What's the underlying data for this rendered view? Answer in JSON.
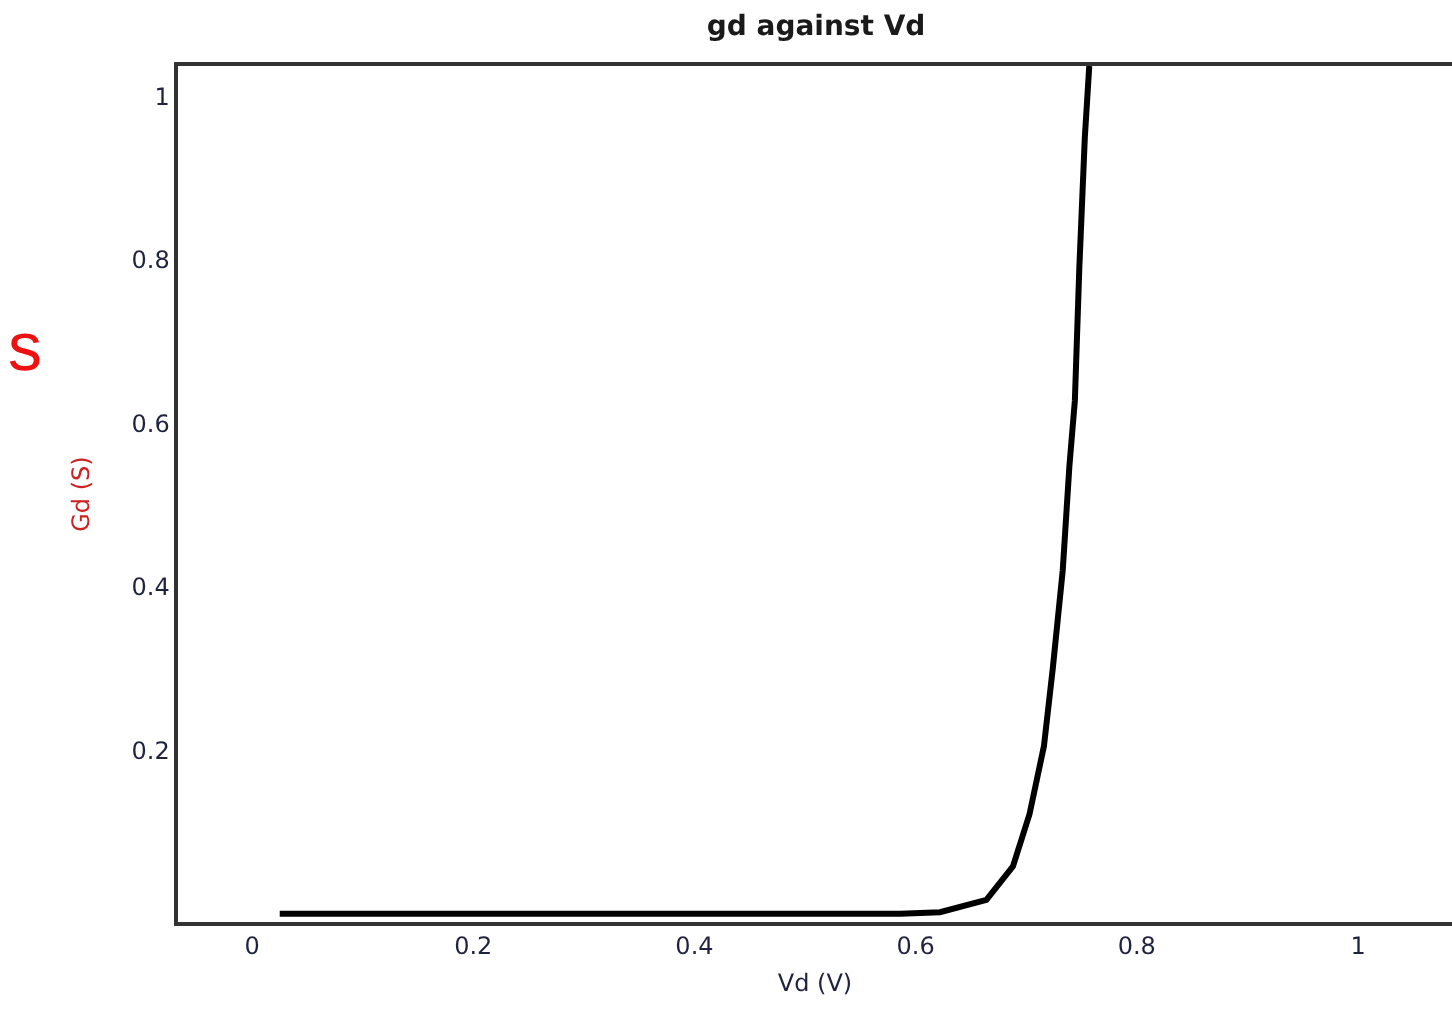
{
  "chart_data": {
    "type": "line",
    "title": "gd against Vd",
    "xlabel": "Vd (V)",
    "ylabel": "Gd (S)",
    "annotations": [
      "s"
    ],
    "x": [
      0.025,
      0.2,
      0.4,
      0.586,
      0.622,
      0.664,
      0.688,
      0.703,
      0.716,
      0.724,
      0.733,
      0.739,
      0.744,
      0.748,
      0.753,
      0.757
    ],
    "series": [
      {
        "color": "#000000",
        "values": [
          0,
          0,
          0,
          0,
          0.002,
          0.017,
          0.058,
          0.122,
          0.205,
          0.3,
          0.42,
          0.547,
          0.628,
          0.79,
          0.95,
          1.037
        ]
      }
    ],
    "xlim": [
      -0.067,
      1.085
    ],
    "ylim": [
      -0.01,
      1.037
    ],
    "xticks": [
      0,
      0.2,
      0.4,
      0.6,
      0.8,
      1
    ],
    "yticks": [
      0.2,
      0.4,
      0.6,
      0.8,
      1
    ],
    "grid": false,
    "marker": "none",
    "line_style": "solid"
  }
}
